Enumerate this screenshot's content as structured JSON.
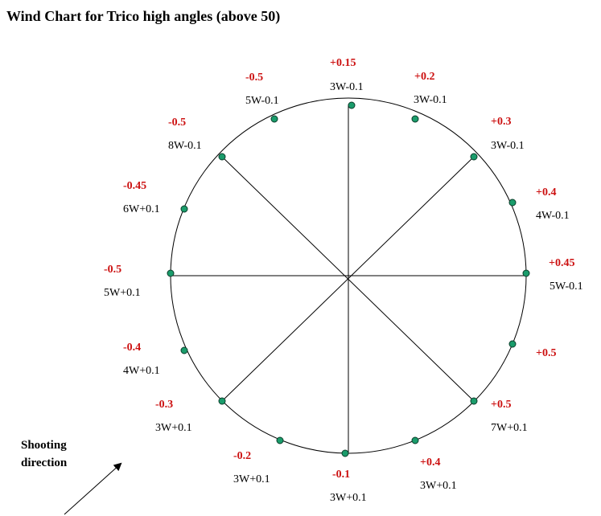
{
  "title": "Wind Chart for Trico high angles (above 50)",
  "shooting_direction": [
    "Shooting",
    "direction"
  ],
  "colors": {
    "value": "#cc1111",
    "point": "#1a9c6b",
    "line": "#000000"
  },
  "points": [
    {
      "value": "+0.15",
      "correction": "3W-0.1"
    },
    {
      "value": "+0.2",
      "correction": "3W-0.1"
    },
    {
      "value": "+0.3",
      "correction": "3W-0.1"
    },
    {
      "value": "+0.4",
      "correction": "4W-0.1"
    },
    {
      "value": "+0.45",
      "correction": "5W-0.1"
    },
    {
      "value": "+0.5",
      "correction": ""
    },
    {
      "value": "+0.5",
      "correction": "7W+0.1"
    },
    {
      "value": "+0.4",
      "correction": "3W+0.1"
    },
    {
      "value": "-0.1",
      "correction": "3W+0.1"
    },
    {
      "value": "-0.2",
      "correction": "3W+0.1"
    },
    {
      "value": "-0.3",
      "correction": "3W+0.1"
    },
    {
      "value": "-0.4",
      "correction": "4W+0.1"
    },
    {
      "value": "-0.5",
      "correction": "5W+0.1"
    },
    {
      "value": "-0.45",
      "correction": "6W+0.1"
    },
    {
      "value": "-0.5",
      "correction": "8W-0.1"
    },
    {
      "value": "-0.5",
      "correction": "5W-0.1"
    }
  ]
}
